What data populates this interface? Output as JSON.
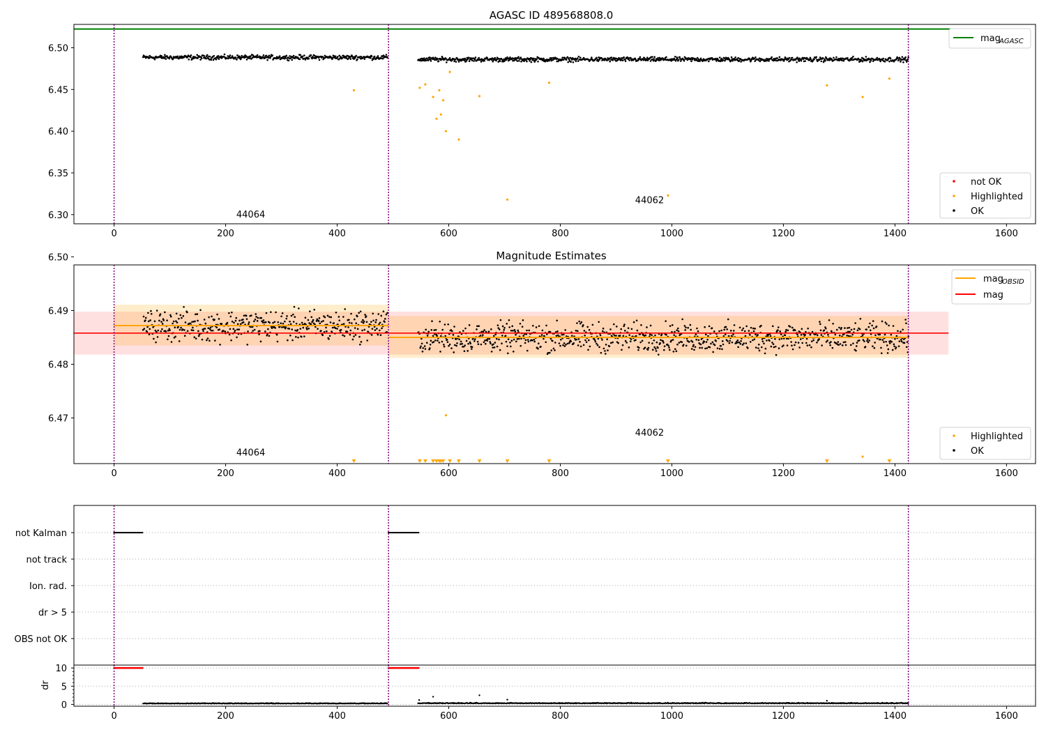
{
  "chart_data": [
    {
      "type": "scatter",
      "title": "AGASC ID 489568808.0",
      "xlim": [
        -72,
        1652
      ],
      "ylim": [
        6.289,
        6.528
      ],
      "xticks": [
        0,
        200,
        400,
        600,
        800,
        1000,
        1200,
        1400,
        1600
      ],
      "xtick_labels": [
        "0",
        "200",
        "400",
        "600",
        "800",
        "1000",
        "1200",
        "1400",
        "1600"
      ],
      "yticks": [
        6.3,
        6.35,
        6.4,
        6.45,
        6.5
      ],
      "ytick_labels": [
        "6.30",
        "6.35",
        "6.40",
        "6.45",
        "6.50"
      ],
      "obsid_boundaries": [
        0,
        492,
        1424
      ],
      "obsid_labels": [
        {
          "text": "44064",
          "x": 245,
          "y": 6.3
        },
        {
          "text": "44062",
          "x": 960,
          "y": 6.317
        }
      ],
      "lines": [
        {
          "name": "mag_AGASC",
          "label_main": "mag",
          "label_sub": "AGASC",
          "x": [
            -72,
            1500
          ],
          "y": [
            6.5225,
            6.5225
          ],
          "color": "#008000"
        }
      ],
      "ok_segments": [
        {
          "x_start": 52,
          "x_end": 490,
          "base": 6.4885,
          "amp": 0.004
        },
        {
          "x_start": 545,
          "x_end": 1424,
          "base": 6.486,
          "amp": 0.004
        }
      ],
      "highlighted": {
        "x": [
          430,
          548,
          558,
          572,
          578,
          583,
          586,
          590,
          595,
          602,
          618,
          655,
          705,
          780,
          993,
          1278,
          1342,
          1390
        ],
        "y": [
          6.449,
          6.452,
          6.456,
          6.441,
          6.415,
          6.449,
          6.42,
          6.437,
          6.4,
          6.471,
          6.39,
          6.442,
          6.318,
          6.458,
          6.323,
          6.455,
          6.441,
          6.463
        ]
      },
      "legend_upper": {
        "position": "upper right",
        "entries": [
          {
            "label_main": "mag",
            "label_sub": "AGASC",
            "color": "#008000"
          }
        ]
      },
      "legend_lower": {
        "position": "lower right",
        "entries": [
          {
            "label": "not OK",
            "color": "#ff0000"
          },
          {
            "label": "Highlighted",
            "color": "#ffa500"
          },
          {
            "label": "OK",
            "color": "#000000"
          }
        ]
      }
    },
    {
      "type": "scatter",
      "title": "Magnitude Estimates",
      "xlim": [
        -72,
        1652
      ],
      "ylim": [
        6.4615,
        6.4985
      ],
      "xticks": [
        0,
        200,
        400,
        600,
        800,
        1000,
        1200,
        1400,
        1600
      ],
      "xtick_labels": [
        "0",
        "200",
        "400",
        "600",
        "800",
        "1000",
        "1200",
        "1400",
        "1600"
      ],
      "yticks": [
        6.47,
        6.48,
        6.49,
        6.5
      ],
      "ytick_labels": [
        "6.47",
        "6.48",
        "6.49",
        "6.50"
      ],
      "obsid_boundaries": [
        0,
        492,
        1424
      ],
      "obsid_labels": [
        {
          "text": "44064",
          "x": 245,
          "y": 6.4635
        },
        {
          "text": "44062",
          "x": 960,
          "y": 6.4672
        }
      ],
      "mag": {
        "value": 6.4858,
        "band": [
          6.4818,
          6.4898
        ],
        "x": [
          -72,
          1496
        ],
        "color": "#ff0000"
      },
      "mag_obsid": [
        {
          "x": [
            0,
            492
          ],
          "value": 6.4872,
          "band": [
            6.4835,
            6.4911
          ]
        },
        {
          "x": [
            492,
            1424
          ],
          "value": 6.485,
          "band": [
            6.4812,
            6.489
          ]
        }
      ],
      "ok_segments": [
        {
          "x_start": 52,
          "x_end": 490,
          "base": 6.4872,
          "amp": 0.0042
        },
        {
          "x_start": 545,
          "x_end": 1424,
          "base": 6.485,
          "amp": 0.004
        }
      ],
      "highlighted_offscale_x": [
        430,
        548,
        558,
        572,
        578,
        583,
        586,
        590,
        602,
        618,
        655,
        705,
        780,
        993,
        1278,
        1390
      ],
      "highlighted_points": {
        "x": [
          595,
          1342
        ],
        "y": [
          6.4705,
          6.4628
        ]
      },
      "legend_upper": {
        "position": "upper right",
        "entries": [
          {
            "label_main": "mag",
            "label_sub": "OBSID",
            "color": "#ffa500"
          },
          {
            "label": "mag",
            "color": "#ff0000"
          }
        ]
      },
      "legend_lower": {
        "position": "lower right",
        "entries": [
          {
            "label": "Highlighted",
            "color": "#ffa500"
          },
          {
            "label": "OK",
            "color": "#000000"
          }
        ]
      }
    },
    {
      "type": "scatter",
      "xlim": [
        -72,
        1652
      ],
      "flag_rows": [
        "not Kalman",
        "not track",
        "Ion. rad.",
        "dr > 5",
        "OBS not OK"
      ],
      "not_kalman_ranges": [
        [
          0,
          52
        ],
        [
          492,
          547
        ]
      ],
      "obsid_boundaries": [
        0,
        492,
        1424
      ]
    },
    {
      "type": "scatter",
      "ylabel": "dr",
      "xlim": [
        -72,
        1652
      ],
      "ylim": [
        -0.5,
        10.8
      ],
      "yticks": [
        0,
        5,
        10
      ],
      "ytick_labels": [
        "0",
        "5",
        "10"
      ],
      "xticks": [
        0,
        200,
        400,
        600,
        800,
        1000,
        1200,
        1400,
        1600
      ],
      "xtick_labels": [
        "0",
        "200",
        "400",
        "600",
        "800",
        "1000",
        "1200",
        "1400",
        "1600"
      ],
      "capped_ranges": [
        [
          0,
          52
        ],
        [
          492,
          547
        ]
      ],
      "capped_value": 10,
      "ok_segments": [
        {
          "x_start": 52,
          "x_end": 490,
          "base": 0.2,
          "amp": 0.25
        },
        {
          "x_start": 545,
          "x_end": 1424,
          "base": 0.25,
          "amp": 0.3
        }
      ],
      "spikes": {
        "x": [
          547,
          572,
          655,
          705,
          1278
        ],
        "y": [
          1.2,
          2.1,
          2.5,
          1.3,
          1.0
        ]
      },
      "obsid_boundaries": [
        0,
        492,
        1424
      ]
    }
  ]
}
